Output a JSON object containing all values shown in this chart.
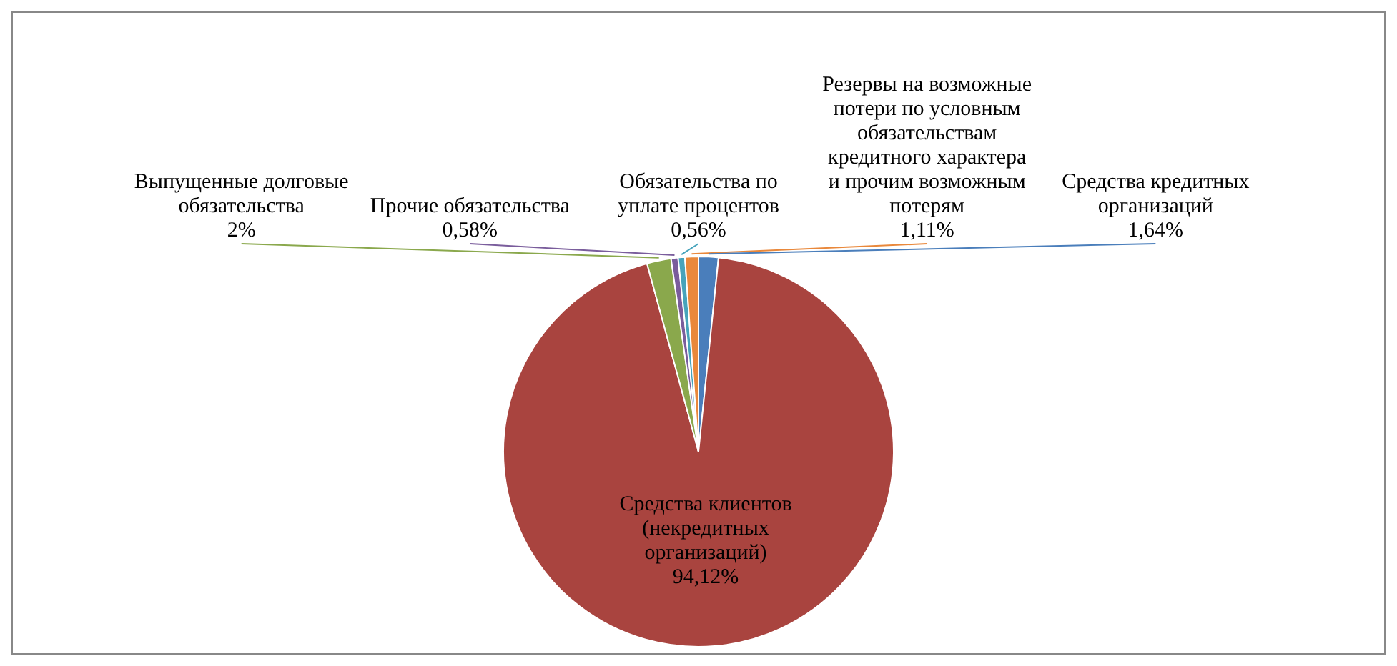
{
  "chart_data": {
    "type": "pie",
    "categories": [
      "Средства кредитных организаций",
      "Средства клиентов (некредитных организаций)",
      "Выпущенные долговые обязательства",
      "Прочие обязательства",
      "Обязательства по уплате процентов",
      "Резервы на возможные потери по условным обязательствам кредитного характера и прочим возможным потерям"
    ],
    "values": [
      1.64,
      94.12,
      2,
      0.58,
      0.56,
      1.11
    ],
    "colors": [
      "#4a7ebb",
      "#a9443f",
      "#8aa84c",
      "#7a5d9c",
      "#46a3bb",
      "#e9883b"
    ],
    "data_labels": true,
    "value_labels": [
      "1,64%",
      "94,12%",
      "2%",
      "0,58%",
      "0,56%",
      "1,11%"
    ],
    "legend": false
  }
}
